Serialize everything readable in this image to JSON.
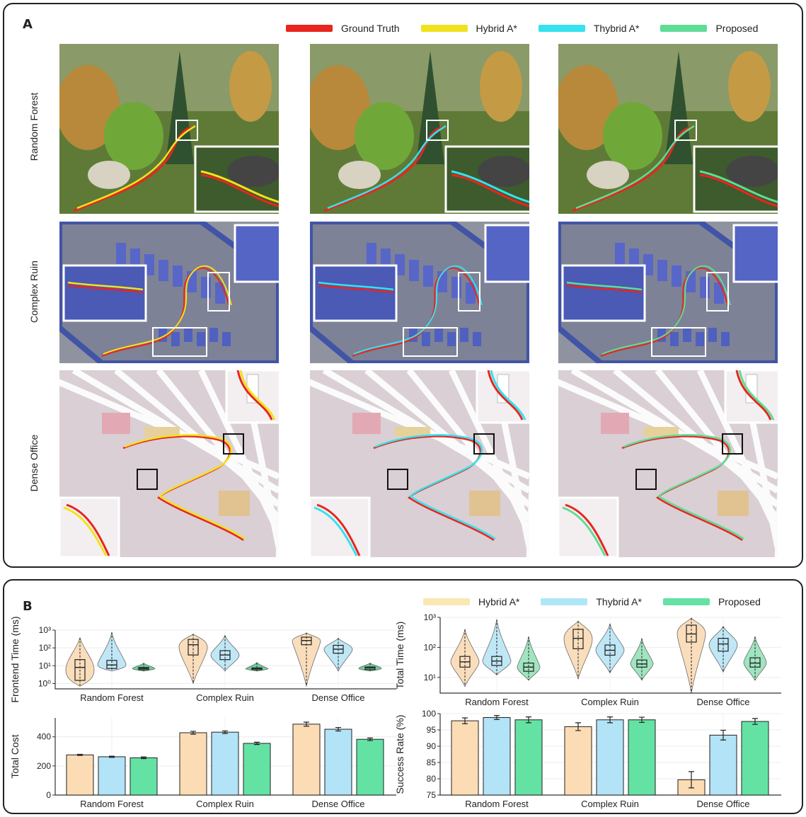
{
  "panelA": {
    "label": "A",
    "legend": [
      {
        "name": "Ground Truth",
        "color": "#e8251f"
      },
      {
        "name": "Hybrid A*",
        "color": "#f2e21d"
      },
      {
        "name": "Thybrid A*",
        "color": "#35e2ee"
      },
      {
        "name": "Proposed",
        "color": "#5fdd96"
      }
    ],
    "rows": [
      "Random Forest",
      "Complex Ruin",
      "Dense Office"
    ]
  },
  "panelB": {
    "label": "B",
    "legend": [
      {
        "name": "Hybrid A*",
        "color": "#f9e7b4"
      },
      {
        "name": "Thybrid A*",
        "color": "#aee6f8"
      },
      {
        "name": "Proposed",
        "color": "#64e2a4"
      }
    ]
  },
  "chart_data": [
    {
      "id": "frontend",
      "type": "violin",
      "ylabel": "Frontend Time (ms)",
      "yscale": "log",
      "ylim": [
        0.5,
        1000
      ],
      "categories": [
        "Random Forest",
        "Complex Ruin",
        "Dense Office"
      ],
      "yticks": [
        {
          "v": 1,
          "t": "10⁰"
        },
        {
          "v": 10,
          "t": "10¹"
        },
        {
          "v": 100,
          "t": "10²"
        },
        {
          "v": 1000,
          "t": "10³"
        }
      ],
      "series": [
        {
          "name": "Hybrid A*",
          "color": "#f9d8b0",
          "stats": [
            {
              "min": 0.7,
              "q1": 1.5,
              "med": 8,
              "q3": 22,
              "max": 380
            },
            {
              "min": 1.0,
              "q1": 40,
              "med": 150,
              "q3": 300,
              "max": 600
            },
            {
              "min": 0.7,
              "q1": 150,
              "med": 260,
              "q3": 400,
              "max": 700
            }
          ]
        },
        {
          "name": "Thybrid A*",
          "color": "#b5e3f5",
          "stats": [
            {
              "min": 5,
              "q1": 7,
              "med": 11,
              "q3": 20,
              "max": 750
            },
            {
              "min": 5,
              "q1": 22,
              "med": 40,
              "q3": 70,
              "max": 500
            },
            {
              "min": 5,
              "q1": 50,
              "med": 85,
              "q3": 140,
              "max": 350
            }
          ]
        },
        {
          "name": "Proposed",
          "color": "#54c48a",
          "stats": [
            {
              "min": 5,
              "q1": 6,
              "med": 7,
              "q3": 8,
              "max": 14
            },
            {
              "min": 5,
              "q1": 6,
              "med": 7,
              "q3": 7.5,
              "max": 15
            },
            {
              "min": 5,
              "q1": 6,
              "med": 7.5,
              "q3": 8.5,
              "max": 14
            }
          ]
        }
      ]
    },
    {
      "id": "total_time",
      "type": "violin",
      "ylabel": "Total Time (ms)",
      "yscale": "log",
      "ylim": [
        3,
        1000
      ],
      "categories": [
        "Random Forest",
        "Complex Ruin",
        "Dense Office"
      ],
      "yticks": [
        {
          "v": 10,
          "t": "10¹"
        },
        {
          "v": 100,
          "t": "10²"
        },
        {
          "v": 1000,
          "t": "10³"
        }
      ],
      "series": [
        {
          "name": "Hybrid A*",
          "color": "#f9d8b0",
          "stats": [
            {
              "min": 5,
              "q1": 22,
              "med": 33,
              "q3": 50,
              "max": 400
            },
            {
              "min": 9,
              "q1": 90,
              "med": 200,
              "q3": 400,
              "max": 750
            },
            {
              "min": 3,
              "q1": 150,
              "med": 280,
              "q3": 550,
              "max": 950
            }
          ]
        },
        {
          "name": "Thybrid A*",
          "color": "#b5e3f5",
          "stats": [
            {
              "min": 12,
              "q1": 25,
              "med": 35,
              "q3": 50,
              "max": 850
            },
            {
              "min": 14,
              "q1": 55,
              "med": 80,
              "q3": 120,
              "max": 600
            },
            {
              "min": 15,
              "q1": 75,
              "med": 130,
              "q3": 200,
              "max": 500
            }
          ]
        },
        {
          "name": "Proposed",
          "color": "#8fe0b5",
          "stats": [
            {
              "min": 8,
              "q1": 16,
              "med": 22,
              "q3": 30,
              "max": 230
            },
            {
              "min": 8,
              "q1": 22,
              "med": 28,
              "q3": 38,
              "max": 200
            },
            {
              "min": 8,
              "q1": 22,
              "med": 30,
              "q3": 45,
              "max": 230
            }
          ]
        }
      ]
    },
    {
      "id": "total_cost",
      "type": "bar",
      "ylabel": "Total Cost",
      "ylim": [
        0,
        530
      ],
      "yticks": [
        {
          "v": 0,
          "t": "0"
        },
        {
          "v": 200,
          "t": "200"
        },
        {
          "v": 400,
          "t": "400"
        }
      ],
      "categories": [
        "Random Forest",
        "Complex Ruin",
        "Dense Office"
      ],
      "series": [
        {
          "name": "Hybrid A*",
          "color": "#fcdcb4",
          "values": [
            276,
            428,
            487
          ],
          "err": [
            4,
            10,
            14
          ]
        },
        {
          "name": "Thybrid A*",
          "color": "#b2e3f7",
          "values": [
            263,
            432,
            452
          ],
          "err": [
            4,
            9,
            12
          ]
        },
        {
          "name": "Proposed",
          "color": "#64e2a4",
          "values": [
            256,
            355,
            383
          ],
          "err": [
            6,
            8,
            9
          ]
        }
      ]
    },
    {
      "id": "success_rate",
      "type": "bar",
      "ylabel": "Success Rate (%)",
      "ylim": [
        75,
        100
      ],
      "yticks": [
        {
          "v": 75,
          "t": "75"
        },
        {
          "v": 80,
          "t": "80"
        },
        {
          "v": 85,
          "t": "85"
        },
        {
          "v": 90,
          "t": "90"
        },
        {
          "v": 95,
          "t": "95"
        },
        {
          "v": 100,
          "t": "100"
        }
      ],
      "categories": [
        "Random Forest",
        "Complex Ruin",
        "Dense Office"
      ],
      "series": [
        {
          "name": "Hybrid A*",
          "color": "#fcdcb4",
          "values": [
            97.8,
            96.0,
            79.7
          ],
          "err": [
            0.9,
            1.2,
            2.5
          ]
        },
        {
          "name": "Thybrid A*",
          "color": "#b2e3f7",
          "values": [
            98.8,
            98.1,
            93.4
          ],
          "err": [
            0.6,
            0.9,
            1.5
          ]
        },
        {
          "name": "Proposed",
          "color": "#64e2a4",
          "values": [
            98.1,
            98.1,
            97.6
          ],
          "err": [
            0.9,
            0.8,
            0.9
          ]
        }
      ]
    }
  ]
}
